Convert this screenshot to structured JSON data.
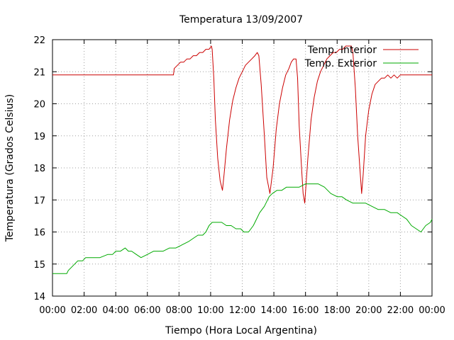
{
  "chart_data": {
    "type": "line",
    "title": "Temperatura 13/09/2007",
    "xlabel": "Tiempo (Hora Local Argentina)",
    "ylabel": "Temperatura (Grados Celsius)",
    "xlim": [
      0,
      24
    ],
    "ylim": [
      14,
      22
    ],
    "x_tick_values": [
      0,
      2,
      4,
      6,
      8,
      10,
      12,
      14,
      16,
      18,
      20,
      22,
      24
    ],
    "x_tick_labels": [
      "00:00",
      "02:00",
      "04:00",
      "06:00",
      "08:00",
      "10:00",
      "12:00",
      "14:00",
      "16:00",
      "18:00",
      "20:00",
      "22:00",
      "00:00"
    ],
    "y_tick_values": [
      14,
      15,
      16,
      17,
      18,
      19,
      20,
      21,
      22
    ],
    "y_tick_labels": [
      "14",
      "15",
      "16",
      "17",
      "18",
      "19",
      "20",
      "21",
      "22"
    ],
    "grid": true,
    "legend_position": "top-right",
    "series": [
      {
        "name": "Temp. Interior",
        "color": "#cc0000",
        "x": [
          0,
          7.65,
          7.7,
          7.9,
          8.1,
          8.3,
          8.5,
          8.7,
          8.9,
          9.1,
          9.3,
          9.5,
          9.7,
          9.9,
          10.05,
          10.1,
          10.2,
          10.3,
          10.45,
          10.6,
          10.75,
          10.85,
          11.0,
          11.2,
          11.4,
          11.6,
          11.8,
          12.0,
          12.2,
          12.4,
          12.6,
          12.8,
          12.95,
          13.05,
          13.2,
          13.4,
          13.55,
          13.75,
          13.95,
          14.15,
          14.35,
          14.55,
          14.75,
          14.95,
          15.1,
          15.25,
          15.4,
          15.5,
          15.6,
          15.75,
          15.85,
          15.95,
          16.15,
          16.35,
          16.55,
          16.75,
          16.95,
          17.15,
          17.35,
          17.55,
          17.75,
          17.95,
          18.15,
          18.35,
          18.55,
          18.75,
          18.9,
          19.0,
          19.15,
          19.3,
          19.45,
          19.55,
          19.65,
          19.8,
          20.0,
          20.2,
          20.4,
          20.6,
          20.8,
          21.0,
          21.2,
          21.4,
          21.6,
          21.8,
          22.0,
          24
        ],
        "y": [
          20.9,
          20.9,
          21.1,
          21.2,
          21.3,
          21.3,
          21.4,
          21.4,
          21.5,
          21.5,
          21.6,
          21.6,
          21.7,
          21.7,
          21.8,
          21.7,
          20.8,
          19.5,
          18.3,
          17.6,
          17.3,
          17.8,
          18.6,
          19.5,
          20.1,
          20.5,
          20.8,
          21.0,
          21.2,
          21.3,
          21.4,
          21.5,
          21.6,
          21.5,
          20.6,
          19.0,
          17.7,
          17.2,
          18.0,
          19.2,
          20.0,
          20.5,
          20.9,
          21.1,
          21.3,
          21.4,
          21.4,
          20.8,
          19.3,
          18.0,
          17.2,
          16.9,
          18.3,
          19.5,
          20.2,
          20.7,
          21.0,
          21.2,
          21.4,
          21.5,
          21.6,
          21.6,
          21.7,
          21.7,
          21.8,
          21.8,
          21.8,
          21.6,
          20.5,
          19.0,
          17.9,
          17.2,
          17.8,
          19.0,
          19.8,
          20.3,
          20.6,
          20.7,
          20.8,
          20.8,
          20.9,
          20.8,
          20.9,
          20.8,
          20.9,
          20.9
        ]
      },
      {
        "name": "Temp. Exterior",
        "color": "#00aa00",
        "x": [
          0,
          0.9,
          1.0,
          1.2,
          1.4,
          1.6,
          1.9,
          2.1,
          2.5,
          3.0,
          3.5,
          3.8,
          4.0,
          4.3,
          4.6,
          4.8,
          5.0,
          5.3,
          5.6,
          6.0,
          6.4,
          6.7,
          7.0,
          7.4,
          7.8,
          8.2,
          8.6,
          8.9,
          9.2,
          9.5,
          9.7,
          9.9,
          10.1,
          10.4,
          10.7,
          11.0,
          11.3,
          11.6,
          11.9,
          12.1,
          12.4,
          12.7,
          12.9,
          13.1,
          13.4,
          13.7,
          13.9,
          14.2,
          14.5,
          14.8,
          15.2,
          15.6,
          16.0,
          16.4,
          16.8,
          17.2,
          17.6,
          18.0,
          18.3,
          18.6,
          19.0,
          19.4,
          19.8,
          20.2,
          20.6,
          21.0,
          21.4,
          21.8,
          22.1,
          22.4,
          22.7,
          23.0,
          23.3,
          23.6,
          23.9,
          24
        ],
        "y": [
          14.7,
          14.7,
          14.8,
          14.9,
          15.0,
          15.1,
          15.1,
          15.2,
          15.2,
          15.2,
          15.3,
          15.3,
          15.4,
          15.4,
          15.5,
          15.4,
          15.4,
          15.3,
          15.2,
          15.3,
          15.4,
          15.4,
          15.4,
          15.5,
          15.5,
          15.6,
          15.7,
          15.8,
          15.9,
          15.9,
          16.0,
          16.2,
          16.3,
          16.3,
          16.3,
          16.2,
          16.2,
          16.1,
          16.1,
          16.0,
          16.0,
          16.2,
          16.4,
          16.6,
          16.8,
          17.1,
          17.2,
          17.3,
          17.3,
          17.4,
          17.4,
          17.4,
          17.5,
          17.5,
          17.5,
          17.4,
          17.2,
          17.1,
          17.1,
          17.0,
          16.9,
          16.9,
          16.9,
          16.8,
          16.7,
          16.7,
          16.6,
          16.6,
          16.5,
          16.4,
          16.2,
          16.1,
          16.0,
          16.2,
          16.3,
          16.4
        ]
      }
    ]
  }
}
